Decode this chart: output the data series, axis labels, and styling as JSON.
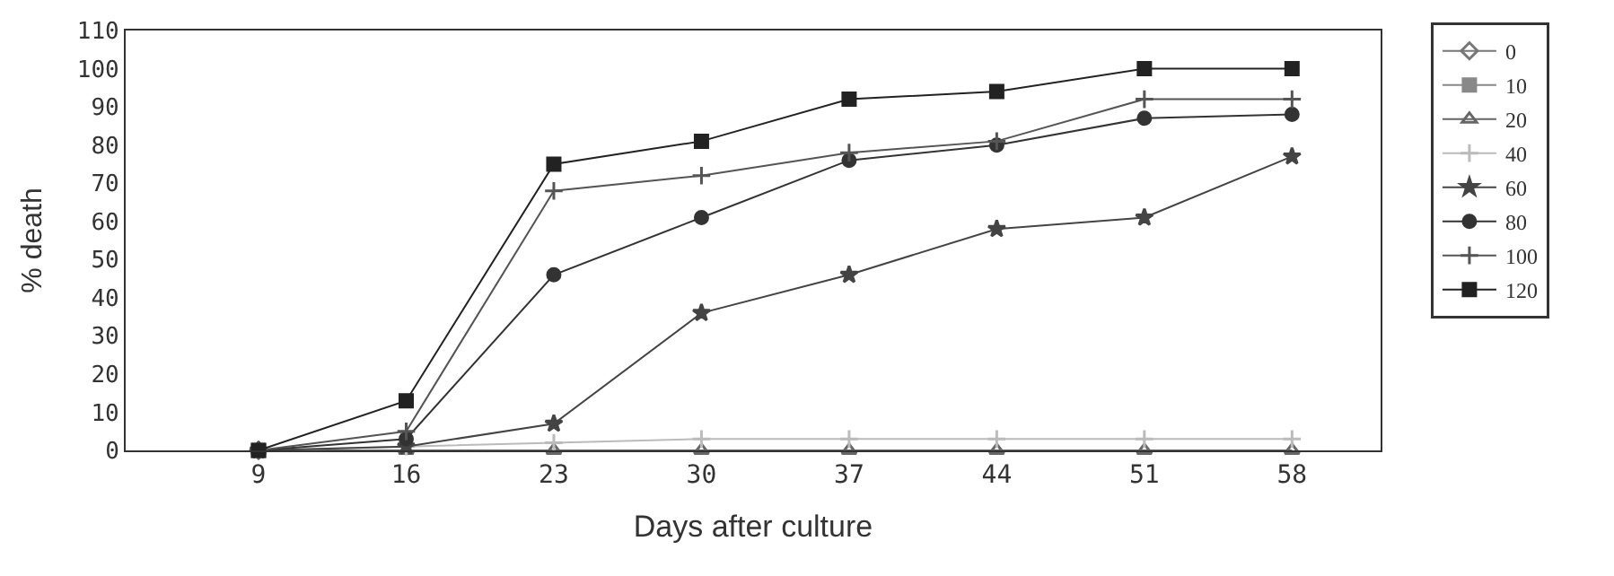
{
  "chart_data": {
    "type": "line",
    "xlabel": "Days after culture",
    "ylabel": "% death",
    "categories": [
      "9",
      "16",
      "23",
      "30",
      "37",
      "44",
      "51",
      "58"
    ],
    "ylim": [
      0,
      110
    ],
    "yticks": [
      0,
      10,
      20,
      30,
      40,
      50,
      60,
      70,
      80,
      90,
      100,
      110
    ],
    "grid": false,
    "legend": "right",
    "series": [
      {
        "name": "0",
        "color": "#777777",
        "marker": "diamond",
        "values": [
          0,
          null,
          null,
          null,
          null,
          null,
          null,
          null
        ]
      },
      {
        "name": "10",
        "color": "#888888",
        "marker": "square",
        "values": [
          0,
          null,
          null,
          null,
          null,
          null,
          null,
          null
        ]
      },
      {
        "name": "20",
        "color": "#666666",
        "marker": "triangle",
        "values": [
          0,
          0,
          0,
          0,
          0,
          0,
          0,
          0
        ]
      },
      {
        "name": "40",
        "color": "#bbbbbb",
        "marker": "cross",
        "values": [
          0,
          1,
          2,
          3,
          3,
          3,
          3,
          3
        ]
      },
      {
        "name": "60",
        "color": "#444444",
        "marker": "star",
        "values": [
          0,
          1,
          7,
          36,
          46,
          58,
          61,
          77
        ]
      },
      {
        "name": "80",
        "color": "#333333",
        "marker": "circle",
        "values": [
          0,
          3,
          46,
          61,
          76,
          80,
          87,
          88
        ]
      },
      {
        "name": "100",
        "color": "#555555",
        "marker": "cross",
        "values": [
          0,
          5,
          68,
          72,
          78,
          81,
          92,
          92
        ]
      },
      {
        "name": "120",
        "color": "#222222",
        "marker": "square",
        "values": [
          0,
          13,
          75,
          81,
          92,
          94,
          100,
          100
        ]
      }
    ]
  }
}
